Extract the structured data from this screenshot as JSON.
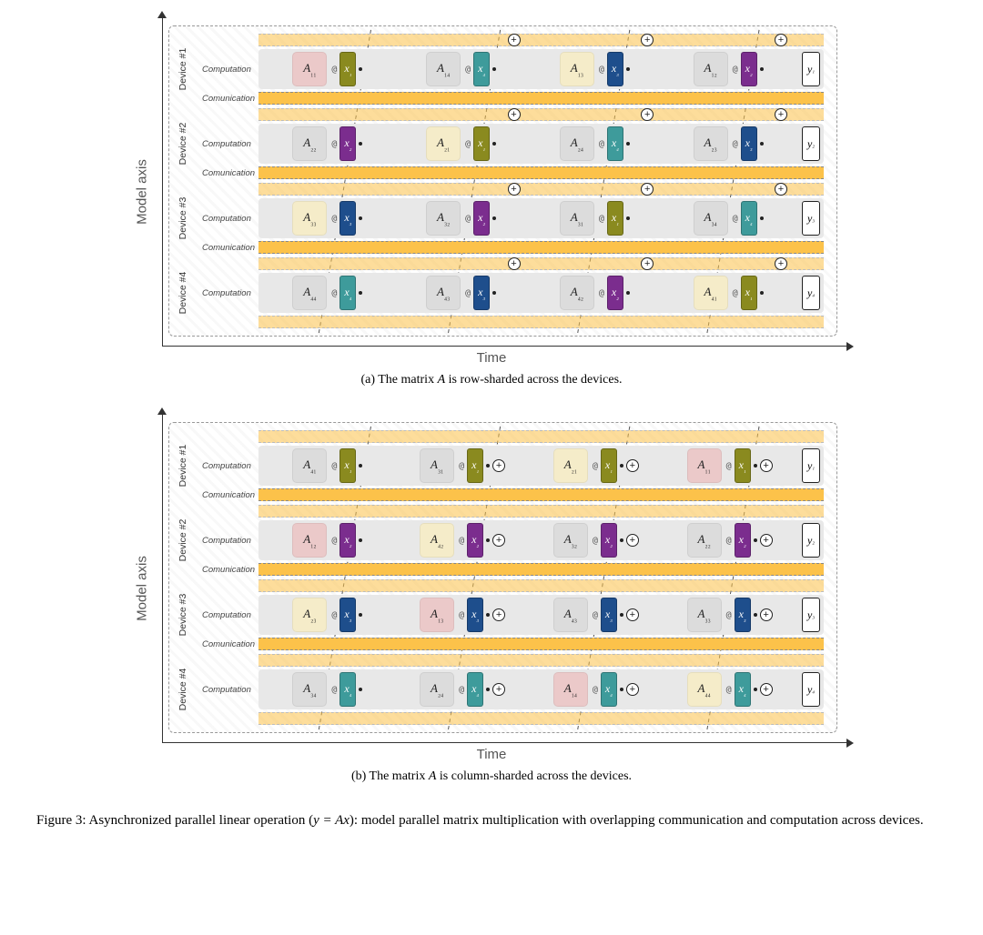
{
  "colors": {
    "x1": "#8a8a1f",
    "x2": "#7b2d8e",
    "x3": "#1e4e8c",
    "x4": "#3e9b9b",
    "a_bg": [
      "#ebc9c9",
      "#dcdcdc",
      "#f5ecc9",
      "#dcdcdc"
    ],
    "a_highlight": "#ebc9c9",
    "comm_band": "#fcc24a",
    "comp_lane": "#e8e8e8",
    "frame": "#999999"
  },
  "labels": {
    "model_axis": "Model axis",
    "time_axis": "Time",
    "computation": "Computation",
    "communication": "Comunication",
    "device_prefix": "Device #"
  },
  "subfig_a": {
    "caption": "(a)  The matrix A is row-sharded across the devices.",
    "devices": [
      {
        "id": 1,
        "y": "y₁",
        "steps": [
          {
            "A": "A₁₁",
            "x": "x₁",
            "xc": "x1",
            "ab": "a_highlight",
            "plus": false
          },
          {
            "A": "A₁₄",
            "x": "x₄",
            "xc": "x4",
            "ab": "grey",
            "plus": true
          },
          {
            "A": "A₁₃",
            "x": "x₃",
            "xc": "x3",
            "ab": "grey",
            "plus": true
          },
          {
            "A": "A₁₂",
            "x": "x₂",
            "xc": "x2",
            "ab": "grey",
            "plus": true
          }
        ]
      },
      {
        "id": 2,
        "y": "y₂",
        "steps": [
          {
            "A": "A₂₂",
            "x": "x₂",
            "xc": "x2",
            "ab": "grey",
            "plus": false
          },
          {
            "A": "A₂₁",
            "x": "x₁",
            "xc": "x1",
            "ab": "grey",
            "plus": true
          },
          {
            "A": "A₂₄",
            "x": "x₄",
            "xc": "x4",
            "ab": "grey",
            "plus": true
          },
          {
            "A": "A₂₃",
            "x": "x₃",
            "xc": "x3",
            "ab": "grey",
            "plus": true
          }
        ]
      },
      {
        "id": 3,
        "y": "y₃",
        "steps": [
          {
            "A": "A₃₃",
            "x": "x₃",
            "xc": "x3",
            "ab": "grey",
            "plus": false
          },
          {
            "A": "A₃₂",
            "x": "x₂",
            "xc": "x2",
            "ab": "grey",
            "plus": true
          },
          {
            "A": "A₃₁",
            "x": "x₁",
            "xc": "x1",
            "ab": "grey",
            "plus": true
          },
          {
            "A": "A₃₄",
            "x": "x₄",
            "xc": "x4",
            "ab": "grey",
            "plus": true
          }
        ]
      },
      {
        "id": 4,
        "y": "y₄",
        "steps": [
          {
            "A": "A₄₄",
            "x": "x₄",
            "xc": "x4",
            "ab": "grey",
            "plus": false
          },
          {
            "A": "A₄₃",
            "x": "x₃",
            "xc": "x3",
            "ab": "grey",
            "plus": true
          },
          {
            "A": "A₄₂",
            "x": "x₂",
            "xc": "x2",
            "ab": "grey",
            "plus": true
          },
          {
            "A": "A₄₁",
            "x": "x₁",
            "xc": "x1",
            "ab": "grey",
            "plus": true
          }
        ]
      }
    ]
  },
  "subfig_b": {
    "caption": "(b)  The matrix A is column-sharded across the devices.",
    "devices": [
      {
        "id": 1,
        "y": "y₁",
        "steps": [
          {
            "A": "A₄₁",
            "x": "x₁",
            "xc": "x1",
            "ab": "grey",
            "plus": false
          },
          {
            "A": "A₃₁",
            "x": "x₁",
            "xc": "x1",
            "ab": "grey",
            "plus": true,
            "plus_inline": true
          },
          {
            "A": "A₂₁",
            "x": "x₁",
            "xc": "x1",
            "ab": "grey",
            "plus": true,
            "plus_inline": true
          },
          {
            "A": "A₁₁",
            "x": "x₁",
            "xc": "x1",
            "ab": "a_highlight",
            "plus": true,
            "plus_inline": true
          }
        ]
      },
      {
        "id": 2,
        "y": "y₂",
        "steps": [
          {
            "A": "A₁₂",
            "x": "x₂",
            "xc": "x2",
            "ab": "a_highlight",
            "plus": false
          },
          {
            "A": "A₄₂",
            "x": "x₂",
            "xc": "x2",
            "ab": "grey",
            "plus": true,
            "plus_inline": true
          },
          {
            "A": "A₃₂",
            "x": "x₂",
            "xc": "x2",
            "ab": "grey",
            "plus": true,
            "plus_inline": true
          },
          {
            "A": "A₂₂",
            "x": "x₂",
            "xc": "x2",
            "ab": "grey",
            "plus": true,
            "plus_inline": true
          }
        ]
      },
      {
        "id": 3,
        "y": "y₃",
        "steps": [
          {
            "A": "A₂₃",
            "x": "x₃",
            "xc": "x3",
            "ab": "grey",
            "plus": false
          },
          {
            "A": "A₁₃",
            "x": "x₃",
            "xc": "x3",
            "ab": "a_highlight",
            "plus": true,
            "plus_inline": true
          },
          {
            "A": "A₄₃",
            "x": "x₃",
            "xc": "x3",
            "ab": "grey",
            "plus": true,
            "plus_inline": true
          },
          {
            "A": "A₃₃",
            "x": "x₃",
            "xc": "x3",
            "ab": "grey",
            "plus": true,
            "plus_inline": true
          }
        ]
      },
      {
        "id": 4,
        "y": "y₄",
        "steps": [
          {
            "A": "A₃₄",
            "x": "x₄",
            "xc": "x4",
            "ab": "grey",
            "plus": false
          },
          {
            "A": "A₂₄",
            "x": "x₄",
            "xc": "x4",
            "ab": "grey",
            "plus": true,
            "plus_inline": true
          },
          {
            "A": "A₁₄",
            "x": "x₄",
            "xc": "x4",
            "ab": "a_highlight",
            "plus": true,
            "plus_inline": true
          },
          {
            "A": "A₄₄",
            "x": "x₄",
            "xc": "x4",
            "ab": "grey",
            "plus": true,
            "plus_inline": true
          }
        ]
      }
    ]
  },
  "figure_caption_prefix": "Figure 3:  Asynchronized parallel linear operation (",
  "figure_caption_math": "y = Ax",
  "figure_caption_suffix": "): model parallel matrix multiplication with overlapping communication and computation across devices."
}
